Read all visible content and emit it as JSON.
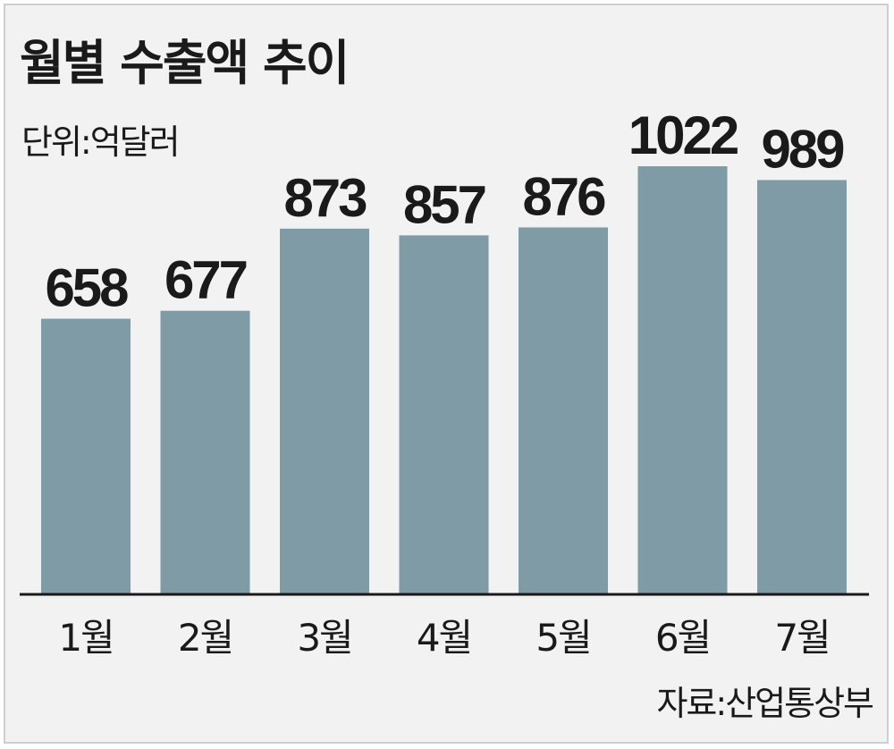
{
  "chart_data": {
    "type": "bar",
    "title": "월별 수출액 추이",
    "unit_label": "단위:억달러",
    "source": "자료:산업통상부",
    "categories": [
      "1월",
      "2월",
      "3월",
      "4월",
      "5월",
      "6월",
      "7월"
    ],
    "values": [
      658,
      677,
      873,
      857,
      876,
      1022,
      989
    ],
    "xlabel": "",
    "ylabel": "",
    "grid": false,
    "bar_color": "#7f9ba6",
    "background_color": "#f2f2f2"
  }
}
